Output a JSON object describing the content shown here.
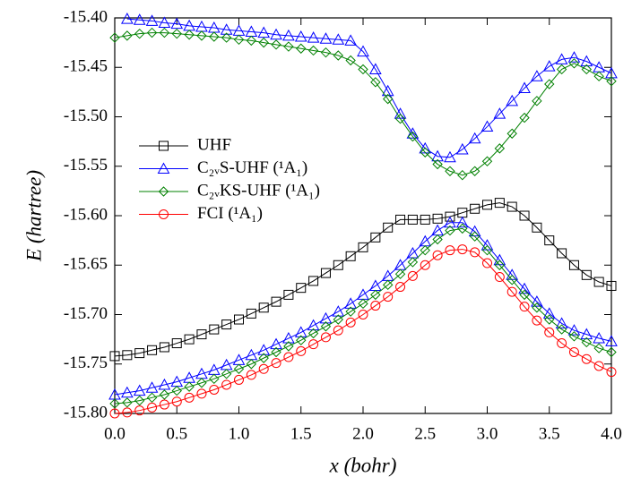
{
  "chart_data": {
    "type": "line",
    "xlabel": "x (bohr)",
    "ylabel": "E (hartree)",
    "xlim": [
      0,
      4
    ],
    "ylim": [
      -15.8,
      -15.4
    ],
    "xticks": [
      {
        "value": 0,
        "label": "0.0"
      },
      0.5,
      {
        "value": 1,
        "label": "1.0"
      },
      1.5,
      {
        "value": 2,
        "label": "2.0"
      },
      2.5,
      {
        "value": 3,
        "label": "3.0"
      },
      3.5,
      {
        "value": 4,
        "label": "4.0"
      }
    ],
    "yticks": [
      {
        "value": -15.8,
        "label": "-15.80"
      },
      -15.75,
      {
        "value": -15.7,
        "label": "-15.70"
      },
      -15.65,
      {
        "value": -15.6,
        "label": "-15.60"
      },
      -15.55,
      {
        "value": -15.5,
        "label": "-15.50"
      },
      -15.45,
      {
        "value": -15.4,
        "label": "-15.40"
      }
    ],
    "grid": false,
    "legend": "left",
    "x": [
      0.0,
      0.1,
      0.2,
      0.3,
      0.4,
      0.5,
      0.6,
      0.7,
      0.8,
      0.9,
      1.0,
      1.1,
      1.2,
      1.3,
      1.4,
      1.5,
      1.6,
      1.7,
      1.8,
      1.9,
      2.0,
      2.1,
      2.2,
      2.3,
      2.4,
      2.5,
      2.6,
      2.7,
      2.8,
      2.9,
      3.0,
      3.1,
      3.2,
      3.3,
      3.4,
      3.5,
      3.6,
      3.7,
      3.8,
      3.9,
      4.0
    ],
    "series": [
      {
        "name": "UHF",
        "color": "#000000",
        "marker": "square",
        "branches": [
          [
            -15.742,
            -15.741,
            -15.739,
            -15.736,
            -15.733,
            -15.729,
            -15.725,
            -15.72,
            -15.715,
            -15.71,
            -15.705,
            -15.699,
            -15.693,
            -15.687,
            -15.68,
            -15.673,
            -15.666,
            -15.658,
            -15.65,
            -15.641,
            -15.632,
            -15.622,
            -15.612,
            -15.604,
            -15.604,
            -15.604,
            -15.603,
            -15.601,
            -15.597,
            -15.593,
            -15.589,
            -15.587,
            -15.591,
            -15.6,
            -15.612,
            -15.625,
            -15.638,
            -15.65,
            -15.66,
            -15.667,
            -15.671
          ]
        ]
      },
      {
        "name": "C₂ᵥS-UHF (¹A₁)",
        "color": "#0000ff",
        "marker": "triangle",
        "branches": [
          [
            null,
            -15.401,
            -15.402,
            -15.403,
            -15.405,
            -15.406,
            -15.408,
            -15.409,
            -15.41,
            -15.412,
            -15.413,
            -15.414,
            -15.415,
            -15.417,
            -15.418,
            -15.419,
            -15.42,
            -15.421,
            -15.422,
            -15.423,
            -15.434,
            -15.452,
            -15.474,
            -15.497,
            -15.517,
            -15.532,
            -15.54,
            -15.541,
            -15.533,
            -15.522,
            -15.51,
            -15.497,
            -15.484,
            -15.471,
            -15.459,
            -15.449,
            -15.442,
            -15.44,
            -15.444,
            -15.45,
            -15.456
          ],
          [
            -15.781,
            -15.779,
            -15.777,
            -15.774,
            -15.771,
            -15.768,
            -15.764,
            -15.76,
            -15.756,
            -15.751,
            -15.746,
            -15.741,
            -15.736,
            -15.73,
            -15.724,
            -15.718,
            -15.711,
            -15.704,
            -15.697,
            -15.689,
            -15.68,
            -15.671,
            -15.661,
            -15.65,
            -15.638,
            -15.626,
            -15.615,
            -15.607,
            -15.607,
            -15.616,
            -15.63,
            -15.645,
            -15.66,
            -15.674,
            -15.687,
            -15.699,
            -15.709,
            -15.716,
            -15.72,
            -15.724,
            -15.727
          ]
        ]
      },
      {
        "name": "C₂ᵥKS-UHF (¹A₁)",
        "color": "#008000",
        "marker": "diamond",
        "branches": [
          [
            -15.42,
            -15.418,
            -15.416,
            -15.415,
            -15.415,
            -15.416,
            -15.417,
            -15.418,
            -15.419,
            -15.42,
            -15.422,
            -15.423,
            -15.425,
            -15.427,
            -15.429,
            -15.431,
            -15.433,
            -15.435,
            -15.438,
            -15.443,
            -15.452,
            -15.465,
            -15.482,
            -15.502,
            -15.52,
            -15.536,
            -15.548,
            -15.555,
            -15.559,
            -15.555,
            -15.545,
            -15.532,
            -15.517,
            -15.501,
            -15.484,
            -15.467,
            -15.452,
            -15.446,
            -15.452,
            -15.459,
            -15.464
          ],
          [
            -15.79,
            -15.789,
            -15.787,
            -15.784,
            -15.781,
            -15.777,
            -15.773,
            -15.769,
            -15.765,
            -15.76,
            -15.755,
            -15.75,
            -15.744,
            -15.738,
            -15.732,
            -15.726,
            -15.719,
            -15.712,
            -15.705,
            -15.697,
            -15.689,
            -15.68,
            -15.67,
            -15.659,
            -15.647,
            -15.635,
            -15.624,
            -15.615,
            -15.613,
            -15.621,
            -15.635,
            -15.65,
            -15.665,
            -15.68,
            -15.693,
            -15.705,
            -15.715,
            -15.722,
            -15.728,
            -15.734,
            -15.738
          ]
        ]
      },
      {
        "name": "FCI (¹A₁)",
        "color": "#ff0000",
        "marker": "circle",
        "branches": [
          [
            -15.8,
            -15.799,
            -15.797,
            -15.794,
            -15.791,
            -15.788,
            -15.784,
            -15.78,
            -15.776,
            -15.771,
            -15.766,
            -15.761,
            -15.755,
            -15.749,
            -15.743,
            -15.737,
            -15.73,
            -15.723,
            -15.716,
            -15.708,
            -15.7,
            -15.691,
            -15.682,
            -15.672,
            -15.661,
            -15.65,
            -15.64,
            -15.635,
            -15.634,
            -15.637,
            -15.648,
            -15.662,
            -15.677,
            -15.692,
            -15.706,
            -15.718,
            -15.729,
            -15.738,
            -15.745,
            -15.752,
            -15.758
          ]
        ]
      }
    ]
  }
}
